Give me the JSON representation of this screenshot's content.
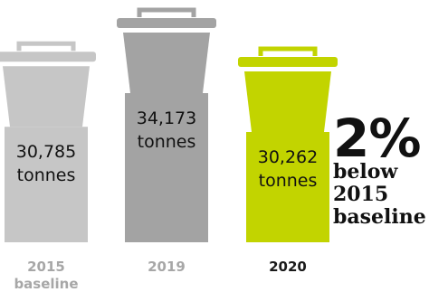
{
  "chart_data": {
    "type": "bar",
    "categories": [
      "2015 baseline",
      "2019",
      "2020"
    ],
    "category_lines": [
      [
        "2015",
        "baseline"
      ],
      [
        "2019"
      ],
      [
        "2020"
      ]
    ],
    "values": [
      30785,
      34173,
      30262
    ],
    "value_labels": [
      [
        "30,785",
        "tonnes"
      ],
      [
        "34,173",
        "tonnes"
      ],
      [
        "30,262",
        "tonnes"
      ]
    ],
    "unit": "tonnes",
    "colors": [
      "#c6c6c6",
      "#a3a3a3",
      "#c2d400"
    ],
    "category_label_colors": [
      "#a7a7a7",
      "#a7a7a7",
      "#1a1a1a"
    ],
    "value_label_color": "#111111",
    "icon": "bin-icon",
    "title": "",
    "xlabel": "",
    "ylabel": ""
  },
  "callout": {
    "value": "2%",
    "text_lines": [
      "below",
      "2015",
      "baseline"
    ]
  }
}
